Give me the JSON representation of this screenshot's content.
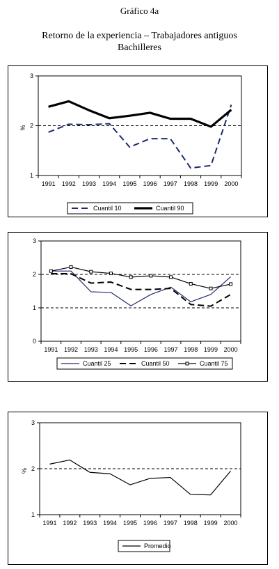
{
  "header": {
    "title": "Gráfico 4a",
    "subtitle_line1": "Retorno de la experiencia – Trabajadores antiguos",
    "subtitle_line2": "Bachilleres"
  },
  "chart_data": [
    {
      "type": "line",
      "x": [
        "1991",
        "1992",
        "1993",
        "1994",
        "1995",
        "1996",
        "1997",
        "1998",
        "1999",
        "2000"
      ],
      "ylabel": "%",
      "ylim": [
        1,
        3
      ],
      "yticks": [
        "1",
        "2",
        "3"
      ],
      "reference_line": 2,
      "legend_placement": "bottom",
      "series": [
        {
          "name": "Cuantil 10",
          "values": [
            1.87,
            2.03,
            2.02,
            2.04,
            1.57,
            1.74,
            1.74,
            1.15,
            1.2,
            2.42
          ],
          "style": "dashed",
          "color": "#1f2a6e"
        },
        {
          "name": "Cuantil 90",
          "values": [
            2.38,
            2.49,
            2.31,
            2.15,
            2.2,
            2.26,
            2.14,
            2.14,
            1.98,
            2.32
          ],
          "style": "solid-thick",
          "color": "#000000"
        }
      ]
    },
    {
      "type": "line",
      "x": [
        "1991",
        "1992",
        "1993",
        "1994",
        "1995",
        "1996",
        "1997",
        "1998",
        "1999",
        "2000"
      ],
      "ylabel": "",
      "ylim": [
        0,
        3
      ],
      "yticks": [
        "0",
        "1",
        "2",
        "3"
      ],
      "reference_lines": [
        1,
        2
      ],
      "legend_placement": "bottom",
      "series": [
        {
          "name": "Cuantil 25",
          "values": [
            2.1,
            2.1,
            1.48,
            1.46,
            1.06,
            1.4,
            1.62,
            1.18,
            1.4,
            1.93
          ],
          "style": "solid",
          "color": "#1f2a6e"
        },
        {
          "name": "Cuantil 50",
          "values": [
            2.02,
            2.02,
            1.74,
            1.77,
            1.55,
            1.55,
            1.58,
            1.1,
            1.05,
            1.4
          ],
          "style": "dashed",
          "color": "#000000"
        },
        {
          "name": "Cuantil 75",
          "values": [
            2.1,
            2.22,
            2.08,
            2.03,
            1.92,
            1.96,
            1.92,
            1.72,
            1.58,
            1.71
          ],
          "style": "solid-square-markers",
          "color": "#000000"
        }
      ]
    },
    {
      "type": "line",
      "x": [
        "1991",
        "1992",
        "1993",
        "1994",
        "1995",
        "1996",
        "1997",
        "1998",
        "1999",
        "2000"
      ],
      "ylabel": "%",
      "ylim": [
        1,
        3
      ],
      "yticks": [
        "1",
        "2",
        "3"
      ],
      "reference_line": 2,
      "legend_placement": "bottom",
      "series": [
        {
          "name": "Promedio",
          "values": [
            2.1,
            2.19,
            1.92,
            1.89,
            1.65,
            1.79,
            1.81,
            1.44,
            1.43,
            1.95
          ],
          "style": "solid",
          "color": "#000000"
        }
      ]
    }
  ]
}
